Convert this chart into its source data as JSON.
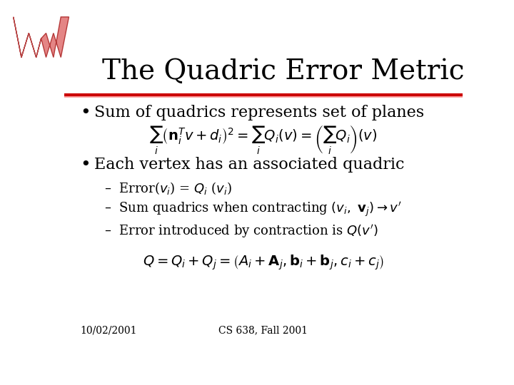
{
  "title": "The Quadric Error Metric",
  "background_color": "#ffffff",
  "title_color": "#000000",
  "title_fontsize": 28,
  "header_line_color_dark": "#cc0000",
  "header_line_color_light": "#ffaaaa",
  "bullet1": "Sum of quadrics represents set of planes",
  "formula1": "$\\sum_{i}\\left(\\mathbf{n}_i^T v + d_i\\right)^2 = \\sum_{i} Q_i(v) = \\left(\\sum_{i} Q_i\\right)(v)$",
  "bullet2": "Each vertex has an associated quadric",
  "sub1": "Error($v_i$) = $Q_i$ ($v_i$)",
  "sub2": "Sum quadrics when contracting $(v_i,\\ \\mathbf{v}_j) \\rightarrow v'$",
  "sub3": "Error introduced by contraction is $Q(v')$",
  "formula2": "$Q = Q_i + Q_j = \\left(A_i + \\mathbf{A}_j, \\mathbf{b}_i + \\mathbf{b}_j, c_i + c_j\\right)$",
  "footer_left": "10/02/2001",
  "footer_center": "CS 638, Fall 2001",
  "footer_fontsize": 10,
  "bullet_fontsize": 16,
  "sub_fontsize": 13,
  "formula_fontsize": 14
}
